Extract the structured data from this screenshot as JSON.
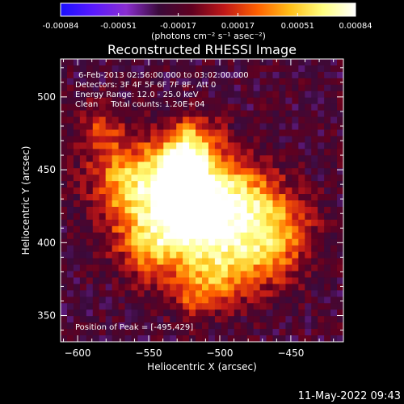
{
  "colorbar": {
    "ticks": [
      "-0.00084",
      "-0.00051",
      "-0.00017",
      "0.00017",
      "0.00051",
      "0.00084"
    ],
    "unit_label": "(photons cm⁻² s⁻¹ asec⁻²)",
    "range": [
      -0.00084,
      0.00084
    ],
    "colors": [
      "#1a10ff",
      "#5a19ff",
      "#8a2ed0",
      "#3a0a3a",
      "#600020",
      "#c01818",
      "#ff6000",
      "#ffbf18",
      "#ffff80",
      "#ffffff"
    ]
  },
  "title": "Reconstructed RHESSI Image",
  "annotations": {
    "line1": "6-Feb-2013 02:56:00.000 to 03:02:00.000",
    "line2": "Detectors: 3F 4F 5F 6F 7F 8F, Att 0",
    "line3": "Energy Range: 12.0 - 25.0 keV",
    "line4": "Clean     Total counts: 1.20E+04",
    "peak": "Position of Peak = [-495,429]"
  },
  "footer_timestamp": "11-May-2022 09:43",
  "chart_data": {
    "type": "heatmap",
    "title": "Reconstructed RHESSI Image",
    "xlabel": "Heliocentric X (arcsec)",
    "ylabel": "Heliocentric Y (arcsec)",
    "xlim": [
      -612,
      -413
    ],
    "ylim": [
      332,
      526
    ],
    "xticks": [
      -600,
      -550,
      -500,
      -450
    ],
    "yticks": [
      350,
      400,
      450,
      500
    ],
    "xtick_labels": [
      "−600",
      "−550",
      "−500",
      "−450"
    ],
    "ytick_labels": [
      "350",
      "400",
      "450",
      "500"
    ],
    "peak_position": [
      -495,
      429
    ],
    "sources": [
      {
        "x": -528,
        "y": 445,
        "sigma": 16,
        "amp": 1.0
      },
      {
        "x": -520,
        "y": 420,
        "sigma": 14,
        "amp": 0.85
      },
      {
        "x": -490,
        "y": 432,
        "sigma": 18,
        "amp": 0.65
      },
      {
        "x": -555,
        "y": 425,
        "sigma": 20,
        "amp": 0.55
      },
      {
        "x": -545,
        "y": 395,
        "sigma": 16,
        "amp": 0.5
      },
      {
        "x": -505,
        "y": 400,
        "sigma": 20,
        "amp": 0.5
      },
      {
        "x": -470,
        "y": 395,
        "sigma": 20,
        "amp": 0.45
      },
      {
        "x": -460,
        "y": 415,
        "sigma": 18,
        "amp": 0.35
      },
      {
        "x": -520,
        "y": 468,
        "sigma": 14,
        "amp": 0.55
      },
      {
        "x": -570,
        "y": 450,
        "sigma": 16,
        "amp": 0.4
      },
      {
        "x": -585,
        "y": 480,
        "sigma": 12,
        "amp": 0.3
      },
      {
        "x": -505,
        "y": 375,
        "sigma": 14,
        "amp": 0.35
      },
      {
        "x": -520,
        "y": 360,
        "sigma": 10,
        "amp": 0.25
      }
    ],
    "background_level": -0.25
  }
}
